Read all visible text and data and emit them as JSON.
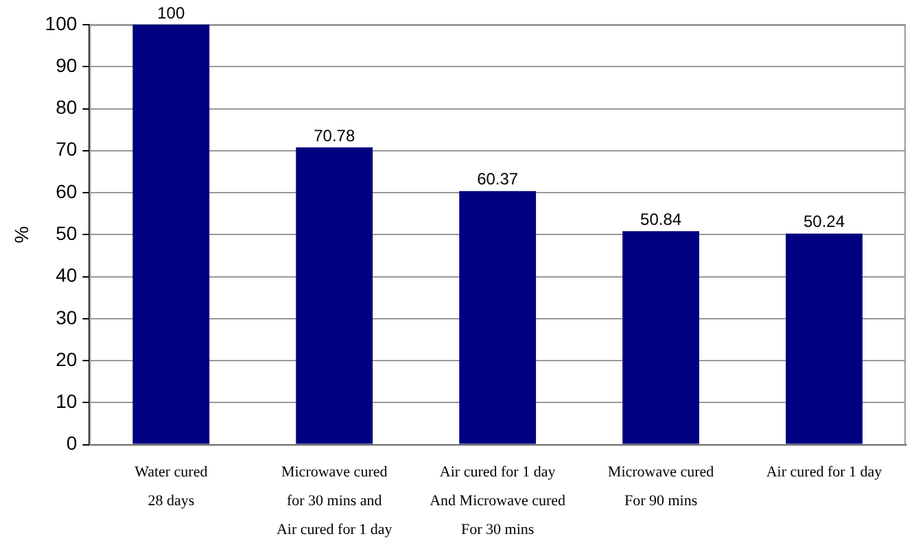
{
  "chart_data": {
    "type": "bar",
    "ylabel": "%",
    "categories": [
      "Water cured\n28 days",
      "Microwave cured\nfor 30 mins and\nAir cured for 1 day",
      "Air cured for 1 day\nAnd Microwave cured\nFor 30 mins",
      "Microwave cured\nFor 90 mins",
      "Air cured for 1 day"
    ],
    "values": [
      100,
      70.78,
      60.37,
      50.84,
      50.24
    ],
    "color": "#000080",
    "ylim": [
      0,
      100
    ],
    "yticks": [
      0,
      10,
      20,
      30,
      40,
      50,
      60,
      70,
      80,
      90,
      100
    ],
    "grid": "y",
    "data_labels": true,
    "legend": false
  }
}
